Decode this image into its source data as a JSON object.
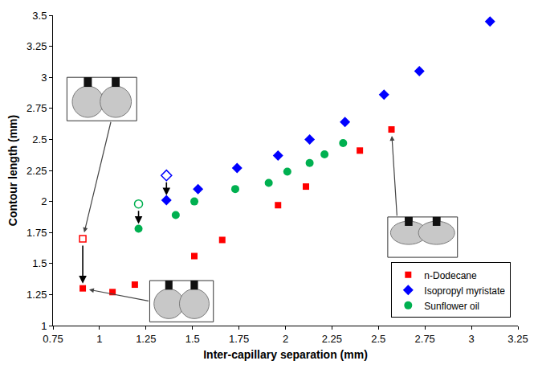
{
  "chart_data": {
    "type": "scatter",
    "x_label": "Inter-capillary separation (mm)",
    "y_label": "Contour length (mm)",
    "xlim": [
      0.75,
      3.25
    ],
    "xticks": [
      0.75,
      1,
      1.25,
      1.5,
      1.75,
      2,
      2.25,
      2.5,
      2.75,
      3,
      3.25
    ],
    "ylim": [
      1,
      3.5
    ],
    "yticks": [
      1,
      1.25,
      1.5,
      1.75,
      2,
      2.25,
      2.5,
      2.75,
      3,
      3.25,
      3.5
    ],
    "grid": false,
    "legend": "bottom right",
    "series": [
      {
        "name": "n-Dodecane",
        "color": "#ff0000",
        "marker": "square",
        "x": [
          0.91,
          1.07,
          1.19,
          1.51,
          1.66,
          1.96,
          2.11,
          2.4,
          2.57
        ],
        "values": [
          1.3,
          1.27,
          1.33,
          1.56,
          1.69,
          1.97,
          2.12,
          2.41,
          2.58
        ],
        "open_x": [
          0.91
        ],
        "open_values": [
          1.7
        ]
      },
      {
        "name": "Isopropyl myristate",
        "color": "#0000ff",
        "marker": "diamond",
        "x": [
          1.36,
          1.53,
          1.74,
          1.96,
          2.13,
          2.32,
          2.53,
          2.72,
          3.1
        ],
        "values": [
          2.01,
          2.1,
          2.27,
          2.37,
          2.5,
          2.64,
          2.86,
          3.05,
          3.45
        ],
        "open_x": [
          1.36
        ],
        "open_values": [
          2.21
        ]
      },
      {
        "name": "Sunflower oil",
        "color": "#00b050",
        "marker": "circle",
        "x": [
          1.21,
          1.41,
          1.51,
          1.73,
          1.91,
          2.01,
          2.13,
          2.21,
          2.31
        ],
        "values": [
          1.78,
          1.89,
          2.0,
          2.1,
          2.15,
          2.24,
          2.31,
          2.38,
          2.47
        ],
        "open_x": [
          1.21
        ],
        "open_values": [
          1.98
        ]
      }
    ]
  }
}
